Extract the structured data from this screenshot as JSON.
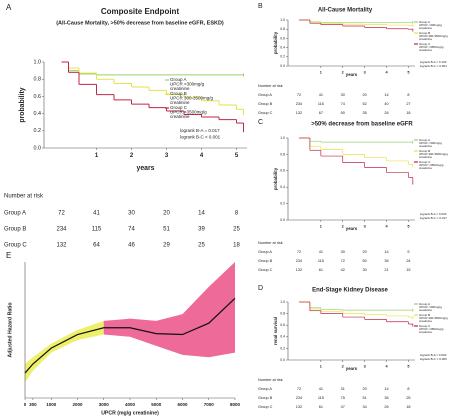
{
  "chart_data": [
    {
      "type": "line",
      "drawstyle": "steps-post",
      "panel_label": "A",
      "title": "Composite Endpoint",
      "subtitle": "(All-Cause  Mortality, >50% decrease from baseline eGFR, ESKD)",
      "xlabel": "years",
      "ylabel": "probability",
      "xlim": [
        -0.5,
        5.3
      ],
      "ylim": [
        0,
        1
      ],
      "xticks": [
        1,
        2,
        3,
        4,
        5
      ],
      "yticks": [
        {
          "value": 0,
          "label": "0.0"
        },
        0.2,
        0.4,
        0.6,
        0.8,
        {
          "value": 1,
          "label": "1.0"
        }
      ],
      "x": [
        0,
        0.2,
        0.5,
        1,
        1.5,
        2,
        2.5,
        3,
        3.5,
        4,
        4.5,
        5,
        5.2
      ],
      "series": [
        {
          "name": "Group A",
          "label_lines": [
            "UPCR <300mg/g",
            "creatinine"
          ],
          "color": "#9ccf6a",
          "values": [
            1,
            0.9,
            0.86,
            0.85,
            0.85,
            0.85,
            0.85,
            0.85,
            0.85,
            0.85,
            0.85,
            0.85,
            0.85
          ]
        },
        {
          "name": "Group B",
          "label_lines": [
            "UPCR 300-3500mg/g",
            "creatinine"
          ],
          "color": "#e3e34a",
          "values": [
            1,
            0.93,
            0.87,
            0.8,
            0.75,
            0.71,
            0.67,
            0.62,
            0.59,
            0.55,
            0.5,
            0.45,
            0.4
          ]
        },
        {
          "name": "Group C",
          "label_lines": [
            "UPCR >3500mg/g",
            "creatinine"
          ],
          "color": "#c0264a",
          "values": [
            1,
            0.88,
            0.74,
            0.62,
            0.56,
            0.51,
            0.47,
            0.43,
            0.39,
            0.36,
            0.33,
            0.29,
            0.2
          ]
        }
      ],
      "annotations": [
        "logrank B-A = 0.017",
        "logrank B-C < 0.001"
      ],
      "risk_table": {
        "title": "Number at  risk",
        "rows": [
          {
            "group": "Group A",
            "counts": [
              72,
              41,
              30,
              20,
              14,
              8
            ]
          },
          {
            "group": "Group B",
            "counts": [
              234,
              115,
              74,
              51,
              39,
              25
            ]
          },
          {
            "group": "Group C",
            "counts": [
              132,
              64,
              46,
              29,
              25,
              18
            ]
          }
        ]
      }
    },
    {
      "type": "line",
      "drawstyle": "steps-post",
      "panel_label": "B",
      "title": "All-Cause Mortality",
      "xlabel": "years",
      "ylabel": "probability",
      "xlim": [
        -0.5,
        5.3
      ],
      "ylim": [
        0,
        1
      ],
      "xticks": [
        1,
        2,
        3,
        4,
        5
      ],
      "yticks": [
        {
          "value": 0,
          "label": "0.0"
        },
        0.2,
        0.4,
        0.6,
        0.8,
        {
          "value": 1,
          "label": "1.0"
        }
      ],
      "x": [
        0,
        0.5,
        1,
        2,
        3,
        4,
        5,
        5.2
      ],
      "series": [
        {
          "name": "Group A",
          "label_lines": [
            "UPCR <300mg/g",
            "creatinine"
          ],
          "color": "#9ccf6a",
          "values": [
            1,
            0.96,
            0.95,
            0.95,
            0.95,
            0.95,
            0.95,
            0.95
          ]
        },
        {
          "name": "Group B",
          "label_lines": [
            "UPCR 300-3500mg/g",
            "creatinine"
          ],
          "color": "#e3e34a",
          "values": [
            1,
            0.95,
            0.93,
            0.91,
            0.9,
            0.89,
            0.88,
            0.88
          ]
        },
        {
          "name": "Group C",
          "label_lines": [
            "UPCR >3500mg/g",
            "creatinine"
          ],
          "color": "#c0264a",
          "values": [
            1,
            0.93,
            0.9,
            0.87,
            0.84,
            0.81,
            0.8,
            0.78
          ]
        }
      ],
      "annotations": [
        "logrank B-A = 0.163",
        "logrank B-C = 0.004"
      ],
      "risk_table": {
        "title": "Number at  risk",
        "rows": [
          {
            "group": "Group A",
            "counts": [
              72,
              41,
              30,
              20,
              14,
              8
            ]
          },
          {
            "group": "Group B",
            "counts": [
              234,
              116,
              74,
              52,
              40,
              27
            ]
          },
          {
            "group": "Group C",
            "counts": [
              132,
              67,
              50,
              35,
              26,
              18
            ]
          }
        ]
      }
    },
    {
      "type": "line",
      "drawstyle": "steps-post",
      "panel_label": "C",
      "title": ">50% decrease from baseline eGFR",
      "xlabel": "years",
      "ylabel": "probability",
      "xlim": [
        -0.5,
        5.3
      ],
      "ylim": [
        0,
        1
      ],
      "xticks": [
        1,
        2,
        3,
        4,
        5
      ],
      "yticks": [
        {
          "value": 0,
          "label": "0.0"
        },
        0.2,
        0.4,
        0.6,
        0.8,
        {
          "value": 1,
          "label": "1.0"
        }
      ],
      "x": [
        0,
        0.5,
        1,
        2,
        3,
        4,
        5,
        5.2
      ],
      "series": [
        {
          "name": "Group A",
          "label_lines": [
            "UPCR <300mg/g",
            "creatinine"
          ],
          "color": "#9ccf6a",
          "values": [
            1,
            0.96,
            0.95,
            0.95,
            0.95,
            0.95,
            0.95,
            0.95
          ]
        },
        {
          "name": "Group B",
          "label_lines": [
            "UPCR 300-3500mg/g",
            "creatinine"
          ],
          "color": "#e3e34a",
          "values": [
            1,
            0.9,
            0.86,
            0.8,
            0.76,
            0.72,
            0.68,
            0.66
          ]
        },
        {
          "name": "Group C",
          "label_lines": [
            "UPCR >3500mg/g",
            "creatinine"
          ],
          "color": "#c0264a",
          "values": [
            1,
            0.85,
            0.78,
            0.7,
            0.64,
            0.58,
            0.52,
            0.45
          ]
        }
      ],
      "annotations": [
        "logrank B-A = 0.003",
        "logrank B-C = 0.017"
      ],
      "risk_table": {
        "title": "Number at  risk",
        "rows": [
          {
            "group": "Group A",
            "counts": [
              72,
              41,
              30,
              20,
              14,
              9
            ]
          },
          {
            "group": "Group B",
            "counts": [
              234,
              115,
              72,
              50,
              36,
              24
            ]
          },
          {
            "group": "Group C",
            "counts": [
              132,
              61,
              42,
              30,
              21,
              15
            ]
          }
        ]
      }
    },
    {
      "type": "line",
      "drawstyle": "steps-post",
      "panel_label": "D",
      "title": "End-Stage Kidney Disease",
      "xlabel": "years",
      "ylabel": "renal survival",
      "xlim": [
        -0.5,
        5.3
      ],
      "ylim": [
        0,
        1
      ],
      "xticks": [
        1,
        2,
        3,
        4,
        5
      ],
      "yticks": [
        {
          "value": 0,
          "label": "0.0"
        },
        0.2,
        0.4,
        0.6,
        0.8,
        {
          "value": 1,
          "label": "1.0"
        }
      ],
      "x": [
        0,
        0.5,
        1,
        2,
        3,
        4,
        5,
        5.2
      ],
      "series": [
        {
          "name": "Group A",
          "label_lines": [
            "UPCR <300mg/g",
            "creatinine"
          ],
          "color": "#9ccf6a",
          "values": [
            1,
            0.9,
            0.87,
            0.86,
            0.86,
            0.86,
            0.86,
            0.86
          ]
        },
        {
          "name": "Group B",
          "label_lines": [
            "UPCR 300-3500mg/g",
            "creatinine"
          ],
          "color": "#e3e34a",
          "values": [
            1,
            0.88,
            0.84,
            0.8,
            0.78,
            0.76,
            0.74,
            0.73
          ]
        },
        {
          "name": "Group C",
          "label_lines": [
            "UPCR >3500mg/g",
            "creatinine"
          ],
          "color": "#c0264a",
          "values": [
            1,
            0.85,
            0.8,
            0.74,
            0.7,
            0.66,
            0.62,
            0.6
          ]
        }
      ],
      "annotations": [
        "logrank B-A = 0.003",
        "logrank B-C = 0.005"
      ],
      "risk_table": {
        "title": "Number at  risk",
        "rows": [
          {
            "group": "Group A",
            "counts": [
              72,
              41,
              31,
              20,
              14,
              8
            ]
          },
          {
            "group": "Group B",
            "counts": [
              234,
              115,
              75,
              51,
              36,
              25
            ]
          },
          {
            "group": "Group C",
            "counts": [
              132,
              61,
              47,
              34,
              26,
              18
            ]
          }
        ]
      }
    },
    {
      "type": "spline",
      "panel_label": "E",
      "xlabel": "UPCR (mg/g creatinine)",
      "ylabel": "Adjusted Hazard Ratio",
      "xlim": [
        0,
        8000
      ],
      "ylim": [
        0,
        3
      ],
      "xticks": [
        0,
        300,
        1000,
        2000,
        3000,
        4000,
        5000,
        6000,
        7000,
        8000
      ],
      "x": [
        0,
        300,
        1000,
        2000,
        3000,
        4000,
        5000,
        6000,
        7000,
        8000
      ],
      "values": [
        0.55,
        0.75,
        1.1,
        1.4,
        1.55,
        1.55,
        1.42,
        1.4,
        1.65,
        2.2
      ],
      "color": "#111111",
      "bands": [
        {
          "color": "#eef06a",
          "x": [
            0,
            300,
            1000,
            2000,
            3000
          ],
          "lower": [
            0.35,
            0.6,
            1.0,
            1.28,
            1.4
          ],
          "upper": [
            0.75,
            0.9,
            1.2,
            1.5,
            1.7
          ]
        },
        {
          "color": "#ee6a98",
          "x": [
            3000,
            4000,
            5000,
            6000,
            7000,
            8000
          ],
          "lower": [
            1.4,
            1.35,
            1.15,
            0.95,
            0.9,
            1.0
          ],
          "upper": [
            1.7,
            1.75,
            1.7,
            1.85,
            2.45,
            3.0
          ]
        }
      ]
    }
  ]
}
